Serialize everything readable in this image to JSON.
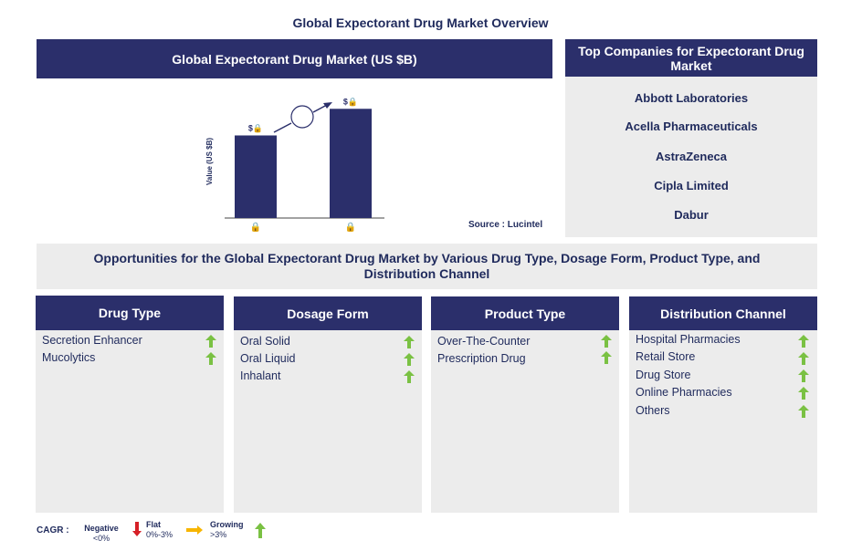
{
  "title": "Global Expectorant Drug Market Overview",
  "chart_header": "Global Expectorant Drug Market (US $B)",
  "companies_header": "Top Companies for Expectorant Drug Market",
  "companies": [
    "Abbott Laboratories",
    "Acella Pharmaceuticals",
    "AstraZeneca",
    "Cipla Limited",
    "Dabur"
  ],
  "source": "Source : Lucintel",
  "opportunities_title": "Opportunities for the Global Expectorant Drug Market by Various Drug Type, Dosage Form, Product Type, and Distribution Channel",
  "segments": [
    {
      "title": "Drug Type",
      "items": [
        "Secretion Enhancer",
        "Mucolytics"
      ]
    },
    {
      "title": "Dosage Form",
      "items": [
        "Oral Solid",
        "Oral Liquid",
        "Inhalant"
      ]
    },
    {
      "title": "Product Type",
      "items": [
        "Over-The-Counter",
        "Prescription Drug"
      ]
    },
    {
      "title": "Distribution Channel",
      "items": [
        "Hospital Pharmacies",
        "Retail Store",
        "Drug Store",
        "Online Pharmacies",
        "Others"
      ]
    }
  ],
  "legend": {
    "label": "CAGR :",
    "negative": {
      "name": "Negative",
      "range": "<0%"
    },
    "flat": {
      "name": "Flat",
      "range": "0%-3%"
    },
    "growing": {
      "name": "Growing",
      "range": ">3%"
    }
  },
  "colors": {
    "navy": "#2b2f6b",
    "panel": "#ececec",
    "growing": "#7ac143",
    "negative": "#d62027",
    "flat": "#f7b500"
  },
  "chart_data": {
    "type": "bar",
    "ylabel": "Value (US $B)",
    "categories": [
      "🔒",
      "🔒"
    ],
    "values": [
      0.62,
      0.82
    ],
    "value_labels": [
      "$🔒",
      "$🔒"
    ],
    "cagr_label": "",
    "ylim": [
      0,
      1
    ]
  }
}
